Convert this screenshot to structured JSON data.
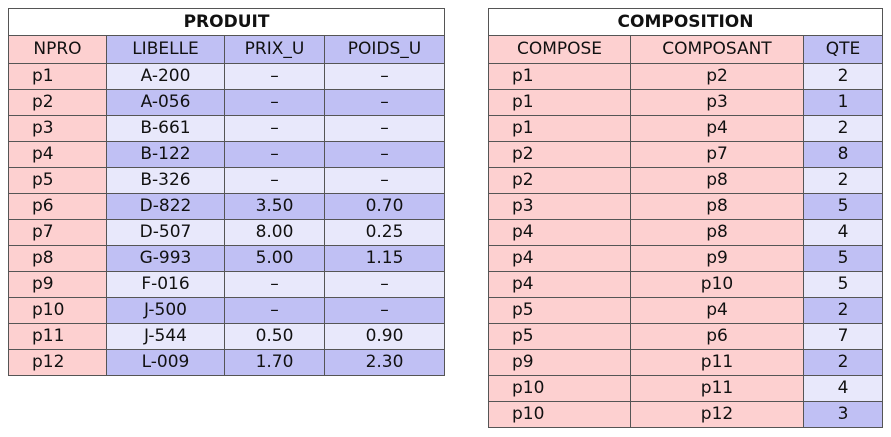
{
  "produit": {
    "title": "PRODUIT",
    "headers": [
      "NPRO",
      "LIBELLE",
      "PRIX_U",
      "POIDS_U"
    ],
    "rows": [
      [
        "p1",
        "A-200",
        "–",
        "–"
      ],
      [
        "p2",
        "A-056",
        "–",
        "–"
      ],
      [
        "p3",
        "B-661",
        "–",
        "–"
      ],
      [
        "p4",
        "B-122",
        "–",
        "–"
      ],
      [
        "p5",
        "B-326",
        "–",
        "–"
      ],
      [
        "p6",
        "D-822",
        "3.50",
        "0.70"
      ],
      [
        "p7",
        "D-507",
        "8.00",
        "0.25"
      ],
      [
        "p8",
        "G-993",
        "5.00",
        "1.15"
      ],
      [
        "p9",
        "F-016",
        "–",
        "–"
      ],
      [
        "p10",
        "J-500",
        "–",
        "–"
      ],
      [
        "p11",
        "J-544",
        "0.50",
        "0.90"
      ],
      [
        "p12",
        "L-009",
        "1.70",
        "2.30"
      ]
    ]
  },
  "composition": {
    "title": "COMPOSITION",
    "headers": [
      "COMPOSE",
      "COMPOSANT",
      "QTE"
    ],
    "rows": [
      [
        "p1",
        "p2",
        "2"
      ],
      [
        "p1",
        "p3",
        "1"
      ],
      [
        "p1",
        "p4",
        "2"
      ],
      [
        "p2",
        "p7",
        "8"
      ],
      [
        "p2",
        "p8",
        "2"
      ],
      [
        "p3",
        "p8",
        "5"
      ],
      [
        "p4",
        "p8",
        "4"
      ],
      [
        "p4",
        "p9",
        "5"
      ],
      [
        "p4",
        "p10",
        "5"
      ],
      [
        "p5",
        "p4",
        "2"
      ],
      [
        "p5",
        "p6",
        "7"
      ],
      [
        "p9",
        "p11",
        "2"
      ],
      [
        "p10",
        "p11",
        "4"
      ],
      [
        "p10",
        "p12",
        "3"
      ]
    ]
  },
  "colors": {
    "key_column": "#fdd0d0",
    "row_light": "#e8e8fb",
    "row_dark": "#c0c0f4",
    "border": "#555555"
  }
}
